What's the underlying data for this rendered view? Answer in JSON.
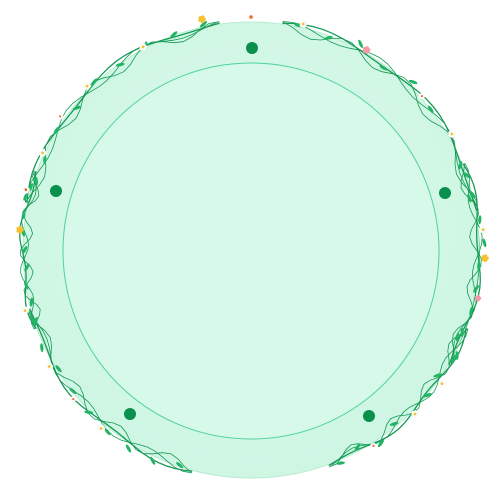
{
  "frame": {
    "shape": "circle",
    "style": "floral-vine-wreath",
    "colors": {
      "fill": "#d3f8e7",
      "fill_inner": "#d8faea",
      "outer_rim": "#10a558",
      "inner_ring": "#4fd39b",
      "dot": "#08904c",
      "vine": "#169a55",
      "leaf": "#22b566",
      "flower_white": "#ffffff",
      "flower_orange": "#f26b2a",
      "flower_yellow": "#f7c232",
      "flower_pink": "#f59aa4"
    },
    "bead_count": 5,
    "icons": [
      "vine-icon",
      "leaf-icon",
      "flower-icon",
      "bead-icon"
    ]
  }
}
